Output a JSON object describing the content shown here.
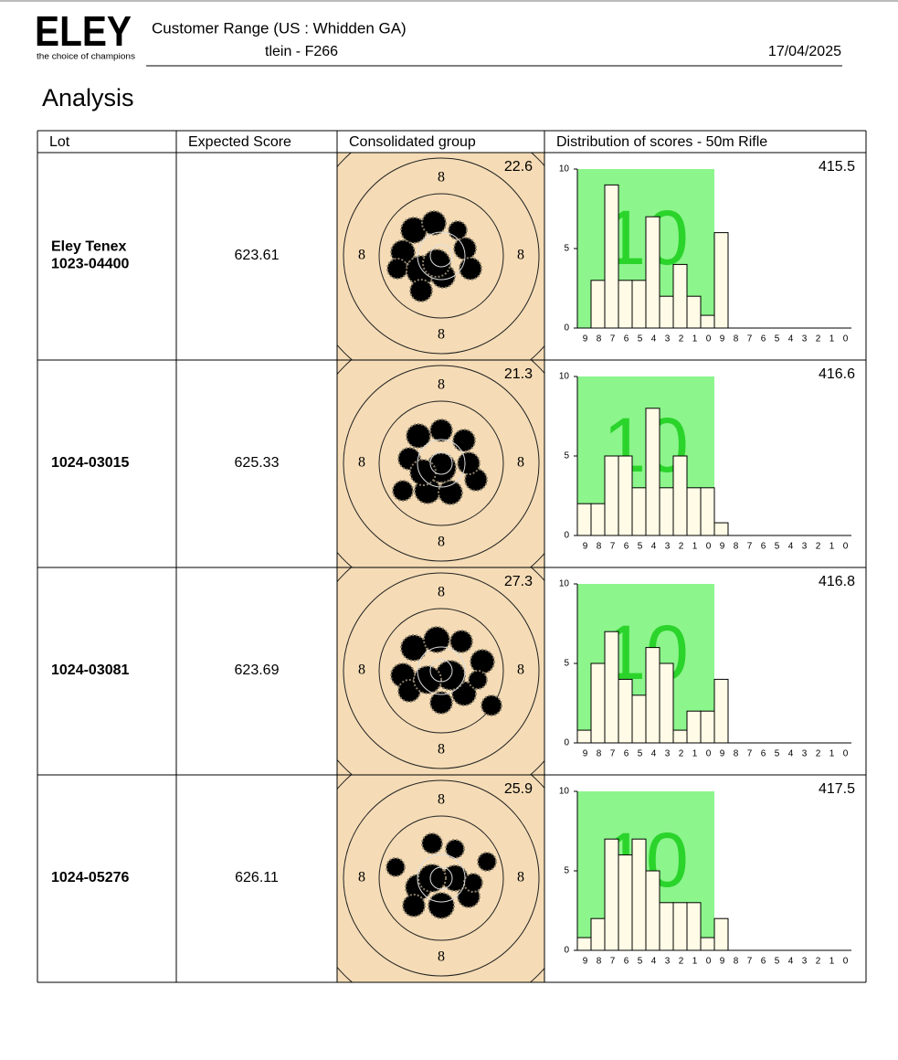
{
  "header": {
    "logo": "ELEY",
    "tagline": "the choice of champions",
    "title": "Customer Range (US : Whidden GA)",
    "subtitle": "tlein - F266",
    "date": "17/04/2025"
  },
  "heading": "Analysis",
  "table": {
    "columns": [
      "Lot",
      "Expected Score",
      "Consolidated group",
      "Distribution of scores - 50m Rifle"
    ],
    "rows": [
      {
        "lot": [
          "Eley Tenex",
          "1023-04400"
        ],
        "expected_score": 623.61,
        "group": {
          "size": 22.6,
          "ring_labels": [
            "8",
            "8",
            "8",
            "8"
          ]
        },
        "distribution": {
          "type": "bar",
          "total": 415.5,
          "zone_label": "10",
          "color": "#fffbe6",
          "categories": [
            "9",
            "8",
            "7",
            "6",
            "5",
            "4",
            "3",
            "2",
            "1",
            "0",
            "9",
            "8",
            "7",
            "6",
            "5",
            "4",
            "3",
            "2",
            "1",
            "0"
          ],
          "values": [
            0,
            3,
            9,
            3,
            3,
            7,
            2,
            4,
            2,
            0.8,
            6,
            0,
            0,
            0,
            0,
            0,
            0,
            0,
            0,
            0
          ],
          "ylim": [
            0,
            10
          ],
          "yticks": [
            0,
            5,
            10
          ]
        }
      },
      {
        "lot": [
          "1024-03015"
        ],
        "expected_score": 625.33,
        "group": {
          "size": 21.3,
          "ring_labels": [
            "8",
            "8",
            "8",
            "8"
          ]
        },
        "distribution": {
          "type": "bar",
          "total": 416.6,
          "zone_label": "10",
          "color": "#fffbe6",
          "categories": [
            "9",
            "8",
            "7",
            "6",
            "5",
            "4",
            "3",
            "2",
            "1",
            "0",
            "9",
            "8",
            "7",
            "6",
            "5",
            "4",
            "3",
            "2",
            "1",
            "0"
          ],
          "values": [
            2,
            2,
            5,
            5,
            3,
            8,
            3,
            5,
            3,
            3,
            0.8,
            0,
            0,
            0,
            0,
            0,
            0,
            0,
            0,
            0
          ],
          "ylim": [
            0,
            10
          ],
          "yticks": [
            0,
            5,
            10
          ]
        }
      },
      {
        "lot": [
          "1024-03081"
        ],
        "expected_score": 623.69,
        "group": {
          "size": 27.3,
          "ring_labels": [
            "8",
            "8",
            "8",
            "8"
          ]
        },
        "distribution": {
          "type": "bar",
          "total": 416.8,
          "zone_label": "10",
          "color": "#fffbe6",
          "categories": [
            "9",
            "8",
            "7",
            "6",
            "5",
            "4",
            "3",
            "2",
            "1",
            "0",
            "9",
            "8",
            "7",
            "6",
            "5",
            "4",
            "3",
            "2",
            "1",
            "0"
          ],
          "values": [
            0.8,
            5,
            7,
            4,
            3,
            6,
            5,
            0.8,
            2,
            2,
            4,
            0,
            0,
            0,
            0,
            0,
            0,
            0,
            0,
            0
          ],
          "ylim": [
            0,
            10
          ],
          "yticks": [
            0,
            5,
            10
          ]
        }
      },
      {
        "lot": [
          "1024-05276"
        ],
        "expected_score": 626.11,
        "group": {
          "size": 25.9,
          "ring_labels": [
            "8",
            "8",
            "8",
            "8"
          ]
        },
        "distribution": {
          "type": "bar",
          "total": 417.5,
          "zone_label": "10",
          "color": "#fffbe6",
          "categories": [
            "9",
            "8",
            "7",
            "6",
            "5",
            "4",
            "3",
            "2",
            "1",
            "0",
            "9",
            "8",
            "7",
            "6",
            "5",
            "4",
            "3",
            "2",
            "1",
            "0"
          ],
          "values": [
            0.8,
            2,
            7,
            6,
            7,
            5,
            3,
            3,
            3,
            0.8,
            2,
            0,
            0,
            0,
            0,
            0,
            0,
            0,
            0,
            0
          ],
          "ylim": [
            0,
            10
          ],
          "yticks": [
            0,
            5,
            10
          ]
        }
      }
    ]
  }
}
